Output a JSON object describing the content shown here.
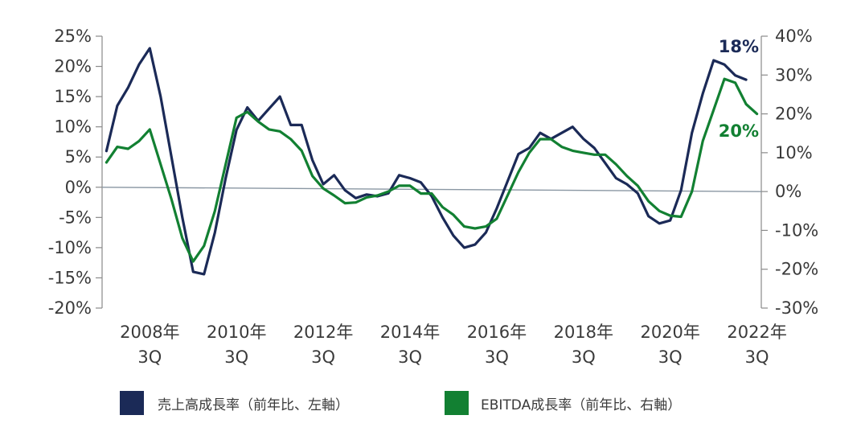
{
  "chart_data": {
    "type": "line",
    "left_axis": {
      "ticks": [
        "25%",
        "20%",
        "15%",
        "10%",
        "5%",
        "0%",
        "-5%",
        "-10%",
        "-15%",
        "-20%"
      ],
      "ylim": [
        -20,
        25
      ]
    },
    "right_axis": {
      "ticks": [
        "40%",
        "30%",
        "20%",
        "10%",
        "0%",
        "-10%",
        "-20%",
        "-30%"
      ],
      "ylim": [
        -30,
        40
      ]
    },
    "x_ticks": [
      {
        "line1": "2008年",
        "line2": "3Q",
        "x": 2008.5
      },
      {
        "line1": "2010年",
        "line2": "3Q",
        "x": 2010.5
      },
      {
        "line1": "2012年",
        "line2": "3Q",
        "x": 2012.5
      },
      {
        "line1": "2014年",
        "line2": "3Q",
        "x": 2014.5
      },
      {
        "line1": "2016年",
        "line2": "3Q",
        "x": 2016.5
      },
      {
        "line1": "2018年",
        "line2": "3Q",
        "x": 2018.5
      },
      {
        "line1": "2020年",
        "line2": "3Q",
        "x": 2020.5
      },
      {
        "line1": "2022年",
        "line2": "3Q",
        "x": 2022.5
      }
    ],
    "xlim": [
      2007.4,
      2022.6
    ],
    "series": [
      {
        "name": "売上高成長率（前年比、左軸）",
        "axis": "left",
        "color": "#1b2a57",
        "end_label": "18%",
        "points": [
          [
            2007.5,
            6
          ],
          [
            2007.75,
            13.5
          ],
          [
            2008.0,
            16.5
          ],
          [
            2008.25,
            20.3
          ],
          [
            2008.5,
            23
          ],
          [
            2008.75,
            15
          ],
          [
            2009.0,
            5
          ],
          [
            2009.25,
            -5
          ],
          [
            2009.5,
            -14
          ],
          [
            2009.75,
            -14.4
          ],
          [
            2010.0,
            -7.5
          ],
          [
            2010.25,
            1.5
          ],
          [
            2010.5,
            9.5
          ],
          [
            2010.75,
            13.2
          ],
          [
            2011.0,
            11
          ],
          [
            2011.25,
            13
          ],
          [
            2011.5,
            15
          ],
          [
            2011.75,
            10.3
          ],
          [
            2012.0,
            10.3
          ],
          [
            2012.25,
            4.5
          ],
          [
            2012.5,
            0.5
          ],
          [
            2012.75,
            2
          ],
          [
            2013.0,
            -0.5
          ],
          [
            2013.25,
            -1.8
          ],
          [
            2013.5,
            -1.2
          ],
          [
            2013.75,
            -1.5
          ],
          [
            2014.0,
            -1
          ],
          [
            2014.25,
            2
          ],
          [
            2014.5,
            1.5
          ],
          [
            2014.75,
            0.8
          ],
          [
            2015.0,
            -1.5
          ],
          [
            2015.25,
            -5
          ],
          [
            2015.5,
            -8
          ],
          [
            2015.75,
            -10
          ],
          [
            2016.0,
            -9.5
          ],
          [
            2016.25,
            -7.5
          ],
          [
            2016.5,
            -3.5
          ],
          [
            2016.75,
            1
          ],
          [
            2017.0,
            5.5
          ],
          [
            2017.25,
            6.5
          ],
          [
            2017.5,
            9
          ],
          [
            2017.75,
            8
          ],
          [
            2018.0,
            9
          ],
          [
            2018.25,
            10
          ],
          [
            2018.5,
            8
          ],
          [
            2018.75,
            6.5
          ],
          [
            2019.0,
            4
          ],
          [
            2019.25,
            1.5
          ],
          [
            2019.5,
            0.5
          ],
          [
            2019.75,
            -1
          ],
          [
            2020.0,
            -4.8
          ],
          [
            2020.25,
            -6
          ],
          [
            2020.5,
            -5.5
          ],
          [
            2020.75,
            -0.5
          ],
          [
            2021.0,
            9
          ],
          [
            2021.25,
            15.5
          ],
          [
            2021.5,
            21
          ],
          [
            2021.75,
            20.3
          ],
          [
            2022.0,
            18.5
          ],
          [
            2022.25,
            17.8
          ]
        ]
      },
      {
        "name": "EBITDA成長率（前年比、右軸）",
        "axis": "right",
        "color": "#128032",
        "end_label": "20%",
        "points": [
          [
            2007.5,
            7.5
          ],
          [
            2007.75,
            11.5
          ],
          [
            2008.0,
            11
          ],
          [
            2008.25,
            13
          ],
          [
            2008.5,
            16
          ],
          [
            2008.75,
            7
          ],
          [
            2009.0,
            -2
          ],
          [
            2009.25,
            -12
          ],
          [
            2009.5,
            -18
          ],
          [
            2009.75,
            -14
          ],
          [
            2010.0,
            -5
          ],
          [
            2010.25,
            7
          ],
          [
            2010.5,
            19
          ],
          [
            2010.75,
            20.5
          ],
          [
            2011.0,
            18
          ],
          [
            2011.25,
            16
          ],
          [
            2011.5,
            15.5
          ],
          [
            2011.75,
            13.5
          ],
          [
            2012.0,
            10.5
          ],
          [
            2012.25,
            4
          ],
          [
            2012.5,
            0.8
          ],
          [
            2012.75,
            -1
          ],
          [
            2013.0,
            -3
          ],
          [
            2013.25,
            -2.8
          ],
          [
            2013.5,
            -1.5
          ],
          [
            2013.75,
            -1
          ],
          [
            2014.0,
            0
          ],
          [
            2014.25,
            1.5
          ],
          [
            2014.5,
            1.5
          ],
          [
            2014.75,
            -0.5
          ],
          [
            2015.0,
            -0.5
          ],
          [
            2015.25,
            -4
          ],
          [
            2015.5,
            -6
          ],
          [
            2015.75,
            -9
          ],
          [
            2016.0,
            -9.5
          ],
          [
            2016.25,
            -9
          ],
          [
            2016.5,
            -7
          ],
          [
            2016.75,
            -1
          ],
          [
            2017.0,
            5
          ],
          [
            2017.25,
            10
          ],
          [
            2017.5,
            13.5
          ],
          [
            2017.75,
            13.5
          ],
          [
            2018.0,
            11.5
          ],
          [
            2018.25,
            10.5
          ],
          [
            2018.5,
            10
          ],
          [
            2018.75,
            9.5
          ],
          [
            2019.0,
            9.5
          ],
          [
            2019.25,
            7
          ],
          [
            2019.5,
            4
          ],
          [
            2019.75,
            1.5
          ],
          [
            2020.0,
            -2.5
          ],
          [
            2020.25,
            -5
          ],
          [
            2020.5,
            -6.2
          ],
          [
            2020.75,
            -6.5
          ],
          [
            2021.0,
            0
          ],
          [
            2021.25,
            13
          ],
          [
            2021.5,
            21
          ],
          [
            2021.75,
            29
          ],
          [
            2022.0,
            28
          ],
          [
            2022.25,
            22.5
          ],
          [
            2022.5,
            20
          ]
        ]
      }
    ]
  }
}
